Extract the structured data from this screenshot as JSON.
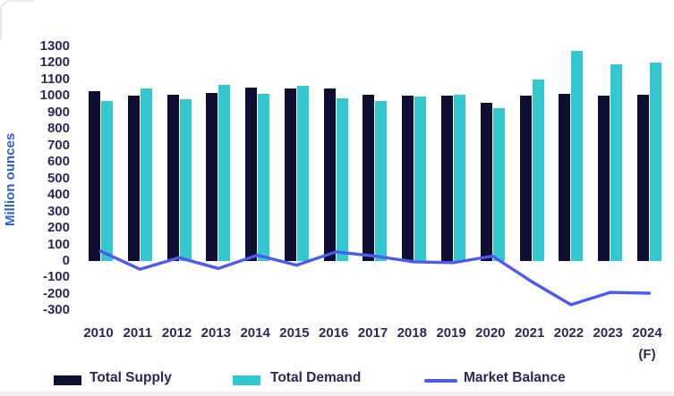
{
  "chart_data": {
    "type": "bar+line",
    "title": "",
    "ylabel": "Million ounces",
    "categories": [
      "2010",
      "2011",
      "2012",
      "2013",
      "2014",
      "2015",
      "2016",
      "2017",
      "2018",
      "2019",
      "2020",
      "2021",
      "2022",
      "2023",
      "2024"
    ],
    "x_axis_note": "(F)",
    "ylim": [
      -300,
      1300
    ],
    "ytick_step": 100,
    "grid": false,
    "legend_position": "bottom",
    "series": [
      {
        "name": "Total Supply",
        "type": "bar",
        "color": "#0e0e32",
        "values": [
          1030,
          1000,
          1005,
          1020,
          1050,
          1045,
          1045,
          1010,
          1000,
          1000,
          960,
          1000,
          1015,
          1000,
          1010
        ]
      },
      {
        "name": "Total Demand",
        "type": "bar",
        "color": "#33c7d0",
        "values": [
          970,
          1045,
          980,
          1065,
          1015,
          1060,
          985,
          970,
          995,
          1010,
          925,
          1100,
          1275,
          1190,
          1205
        ]
      },
      {
        "name": "Market Balance",
        "type": "line",
        "color": "#4d5af2",
        "values": [
          60,
          -50,
          20,
          -45,
          35,
          -25,
          55,
          30,
          -5,
          -10,
          30,
          -125,
          -265,
          -190,
          -195
        ]
      }
    ]
  },
  "y_axis": {
    "ticks": [
      1300,
      1200,
      1100,
      1000,
      900,
      800,
      700,
      600,
      500,
      400,
      300,
      200,
      100,
      0,
      -100,
      -200,
      -300
    ]
  }
}
